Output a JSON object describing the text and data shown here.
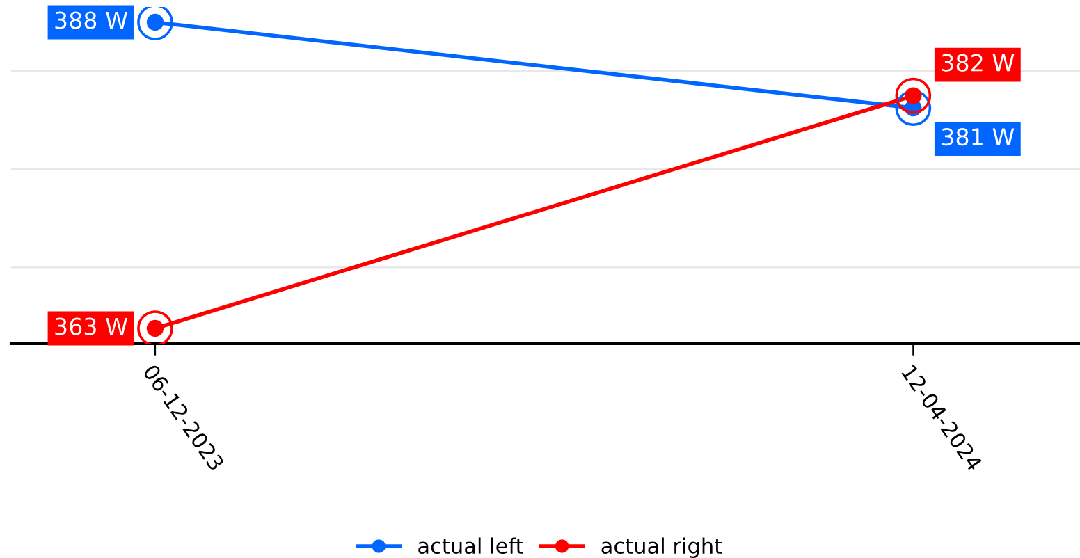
{
  "chart_data": {
    "type": "line",
    "categories": [
      "06-12-2023",
      "12-04-2024"
    ],
    "series": [
      {
        "name": "actual left",
        "color": "#0066ff",
        "values": [
          388,
          381
        ],
        "value_labels": [
          "388 W",
          "381 W"
        ]
      },
      {
        "name": "actual right",
        "color": "#ff0000",
        "values": [
          363,
          382
        ],
        "value_labels": [
          "363 W",
          "382 W"
        ]
      }
    ],
    "tick_labels": "x",
    "grid": "y",
    "legend": "bottom",
    "marker": "circle",
    "line_style": "solid"
  }
}
